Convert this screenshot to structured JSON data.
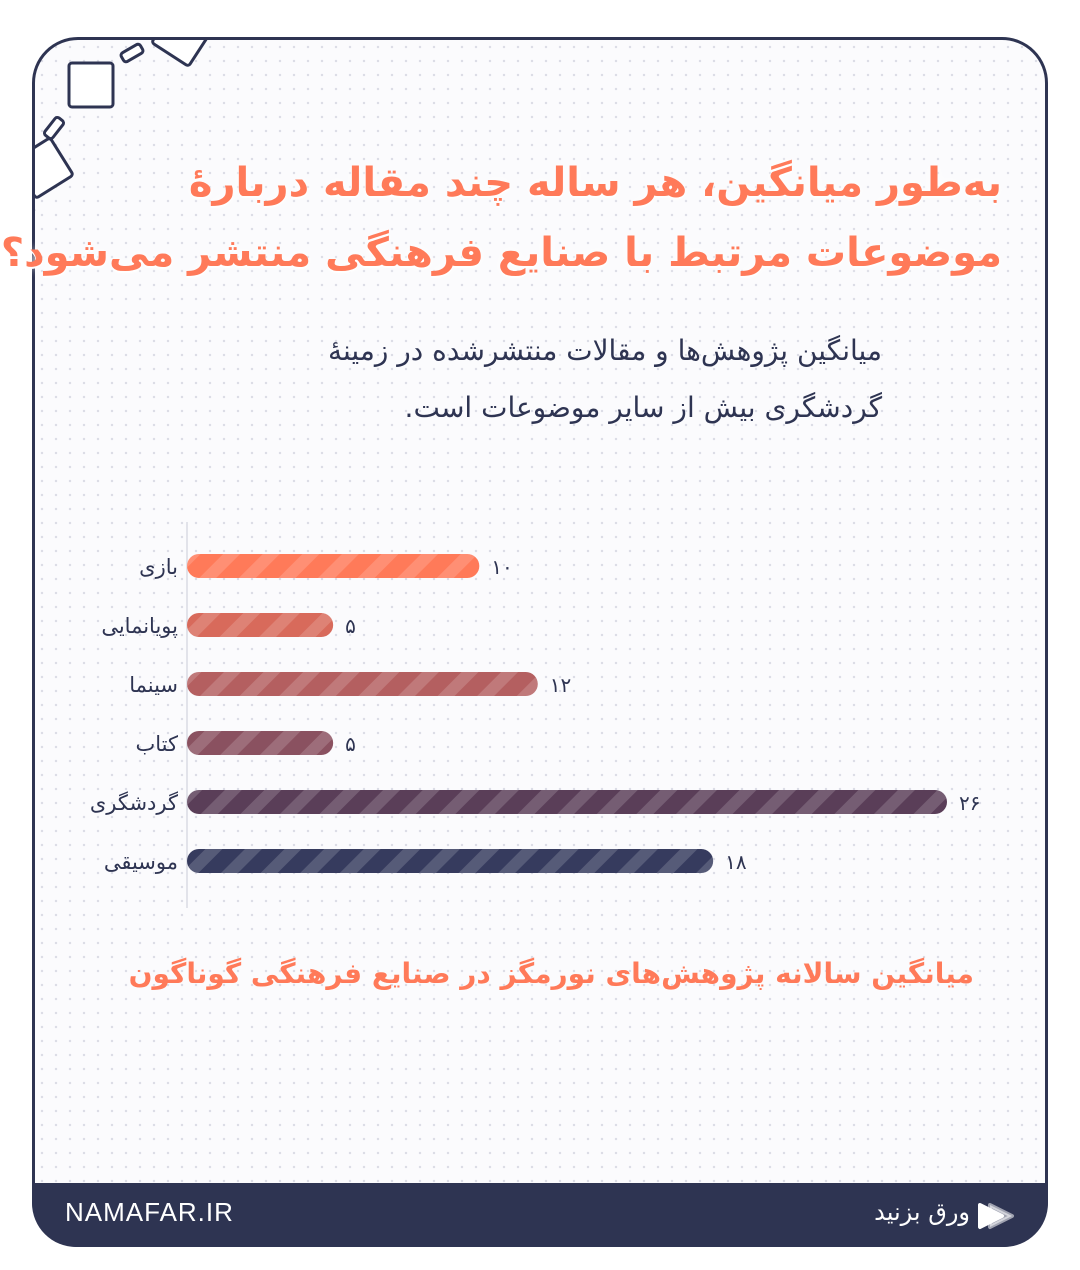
{
  "header": {
    "title_line1": "به‌طور میانگین، هر ساله چند مقاله دربارهٔ",
    "title_line2": "موضوعات مرتبط با صنایع فرهنگی منتشر می‌شود؟",
    "subtitle_line1": "میانگین پژوهش‌ها و مقالات منتشرشده در زمینهٔ",
    "subtitle_line2": "گردشگری بیش از سایر موضوعات است."
  },
  "chart_data": {
    "type": "bar",
    "orientation": "horizontal",
    "categories": [
      "بازی",
      "پویانمایی",
      "سینما",
      "کتاب",
      "گردشگری",
      "موسیقی"
    ],
    "values": [
      10,
      5,
      12,
      5,
      26,
      18
    ],
    "value_labels": [
      "۱۰",
      "۵",
      "۱۲",
      "۵",
      "۲۶",
      "۱۸"
    ],
    "colors": [
      "#ff7a59",
      "#d86a5b",
      "#b45f60",
      "#8a5160",
      "#5a3e58",
      "#363b5e"
    ],
    "caption": "میانگین سالانه پژوهش‌های نورمگز در صنایع فرهنگی گوناگون",
    "xlim": [
      0,
      26
    ]
  },
  "footer": {
    "brand": "NAMAFAR.IR",
    "swipe_label": "ورق بزنید"
  },
  "colors": {
    "accent": "#ff7a59",
    "navy": "#2e3452"
  }
}
